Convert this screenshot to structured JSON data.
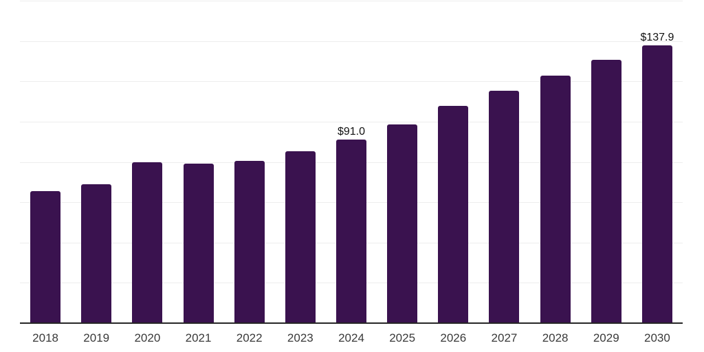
{
  "chart_data": {
    "type": "bar",
    "title": "",
    "categories": [
      "2018",
      "2019",
      "2020",
      "2021",
      "2022",
      "2023",
      "2024",
      "2025",
      "2026",
      "2027",
      "2028",
      "2029",
      "2030"
    ],
    "values": [
      65.4,
      68.8,
      79.9,
      79.2,
      80.4,
      85.3,
      91.0,
      98.6,
      107.8,
      115.2,
      123.0,
      130.8,
      137.9
    ],
    "data_labels": {
      "2024": "$91.0",
      "2030": "$137.9"
    },
    "xlabel": "",
    "ylabel": "",
    "ylim": [
      0,
      160
    ],
    "grid_step": 20,
    "grid": "horizontal-only",
    "y_axis_tick_labels": "none",
    "legend_position": "none",
    "colors": {
      "bar": "#3a124f",
      "axis_line": "#262626",
      "gridline": "#ededed",
      "data_label": "#111111",
      "tick_label": "#3a3a3a",
      "background": "#ffffff"
    }
  }
}
